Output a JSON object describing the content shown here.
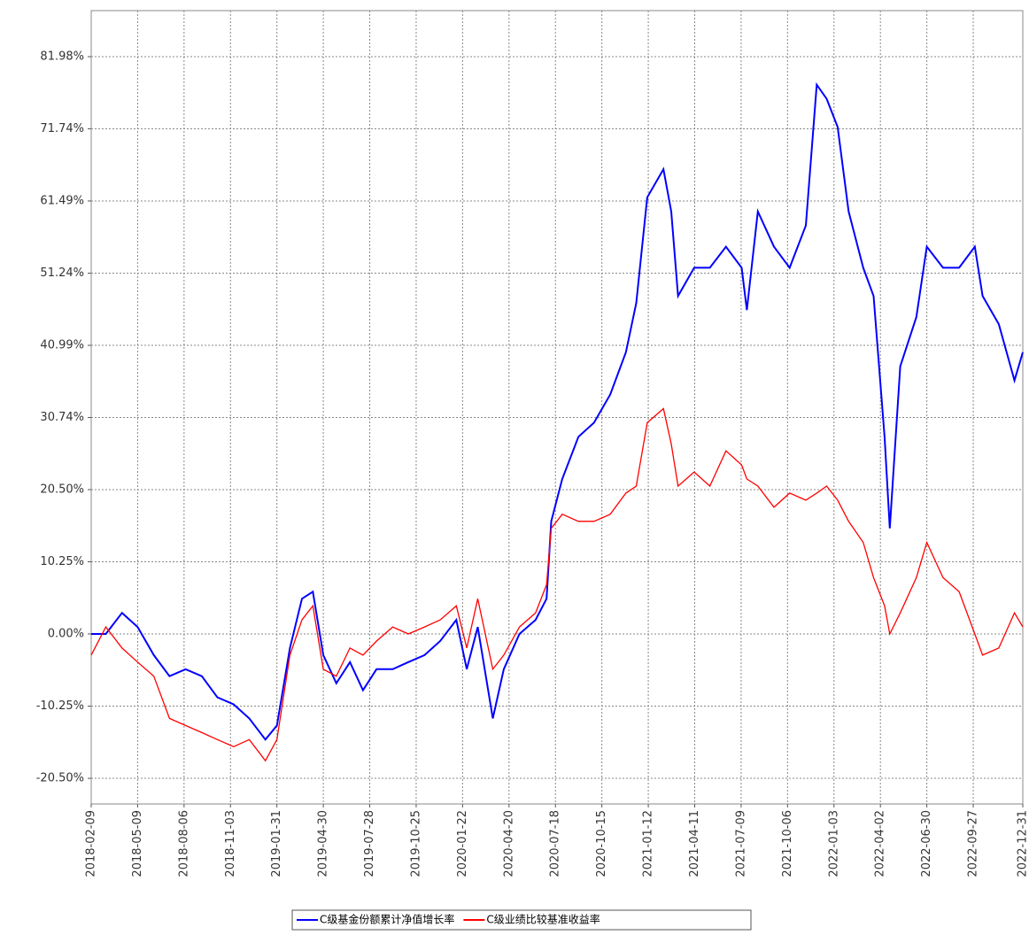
{
  "chart_data": {
    "type": "line",
    "x": [
      "2018-02-09",
      "2018-03-09",
      "2018-04-09",
      "2018-05-09",
      "2018-06-09",
      "2018-07-09",
      "2018-08-09",
      "2018-09-09",
      "2018-10-09",
      "2018-11-09",
      "2018-12-09",
      "2019-01-09",
      "2019-01-31",
      "2019-02-25",
      "2019-03-20",
      "2019-04-10",
      "2019-04-30",
      "2019-05-25",
      "2019-06-20",
      "2019-07-15",
      "2019-08-10",
      "2019-09-10",
      "2019-10-10",
      "2019-11-10",
      "2019-12-10",
      "2020-01-10",
      "2020-01-30",
      "2020-02-20",
      "2020-03-20",
      "2020-04-10",
      "2020-05-10",
      "2020-06-10",
      "2020-07-01",
      "2020-07-10",
      "2020-07-31",
      "2020-08-31",
      "2020-09-30",
      "2020-10-31",
      "2020-11-30",
      "2020-12-20",
      "2021-01-10",
      "2021-02-10",
      "2021-02-25",
      "2021-03-10",
      "2021-04-10",
      "2021-05-10",
      "2021-06-10",
      "2021-07-10",
      "2021-07-20",
      "2021-08-10",
      "2021-09-10",
      "2021-10-10",
      "2021-11-10",
      "2021-12-01",
      "2021-12-20",
      "2022-01-10",
      "2022-01-31",
      "2022-02-28",
      "2022-03-20",
      "2022-04-10",
      "2022-04-20",
      "2022-05-10",
      "2022-06-10",
      "2022-06-30",
      "2022-07-31",
      "2022-08-31",
      "2022-09-30",
      "2022-10-15",
      "2022-11-15",
      "2022-12-15",
      "2022-12-31"
    ],
    "series": [
      {
        "name": "C级基金份额累计净值增长率",
        "color": "#0000ff",
        "values": [
          0,
          0,
          3,
          1,
          -3,
          -6,
          -5,
          -6,
          -9,
          -10,
          -12,
          -15,
          -13,
          -2,
          5,
          6,
          -3,
          -7,
          -4,
          -8,
          -5,
          -5,
          -4,
          -3,
          -1,
          2,
          -5,
          1,
          -12,
          -5,
          0,
          2,
          5,
          16,
          22,
          28,
          30,
          34,
          40,
          47,
          62,
          66,
          60,
          48,
          52,
          52,
          55,
          52,
          46,
          60,
          55,
          52,
          58,
          78,
          76,
          72,
          60,
          52,
          48,
          28,
          15,
          38,
          45,
          55,
          52,
          52,
          55,
          48,
          44,
          36,
          40
        ]
      },
      {
        "name": "C级业绩比较基准收益率",
        "color": "#ff0000",
        "values": [
          -3,
          1,
          -2,
          -4,
          -6,
          -12,
          -13,
          -14,
          -15,
          -16,
          -15,
          -18,
          -15,
          -3,
          2,
          4,
          -5,
          -6,
          -2,
          -3,
          -1,
          1,
          0,
          1,
          2,
          4,
          -2,
          5,
          -5,
          -3,
          1,
          3,
          7,
          15,
          17,
          16,
          16,
          17,
          20,
          21,
          30,
          32,
          27,
          21,
          23,
          21,
          26,
          24,
          22,
          21,
          18,
          20,
          19,
          20,
          21,
          19,
          16,
          13,
          8,
          4,
          0,
          3,
          8,
          13,
          8,
          6,
          0,
          -3,
          -2,
          3,
          1
        ]
      }
    ],
    "xlim": [
      "2018-02-09",
      "2022-12-31"
    ],
    "xticks": [
      "2018-02-09",
      "2018-05-09",
      "2018-08-06",
      "2018-11-03",
      "2019-01-31",
      "2019-04-30",
      "2019-07-28",
      "2019-10-25",
      "2020-01-22",
      "2020-04-20",
      "2020-07-18",
      "2020-10-15",
      "2021-01-12",
      "2021-04-11",
      "2021-07-09",
      "2021-10-06",
      "2022-01-03",
      "2022-04-02",
      "2022-06-30",
      "2022-09-27",
      "2022-12-31"
    ],
    "ylim": [
      -24.14,
      88.52
    ],
    "yticks": [
      {
        "value": -20.5,
        "label": "-20.50%"
      },
      {
        "value": -10.25,
        "label": "-10.25%"
      },
      {
        "value": 0,
        "label": "0.00%"
      },
      {
        "value": 10.25,
        "label": "10.25%"
      },
      {
        "value": 20.5,
        "label": "20.50%"
      },
      {
        "value": 30.74,
        "label": "30.74%"
      },
      {
        "value": 40.99,
        "label": "40.99%"
      },
      {
        "value": 51.24,
        "label": "51.24%"
      },
      {
        "value": 61.49,
        "label": "61.49%"
      },
      {
        "value": 71.74,
        "label": "71.74%"
      },
      {
        "value": 81.98,
        "label": "81.98%"
      }
    ],
    "grid": true
  }
}
